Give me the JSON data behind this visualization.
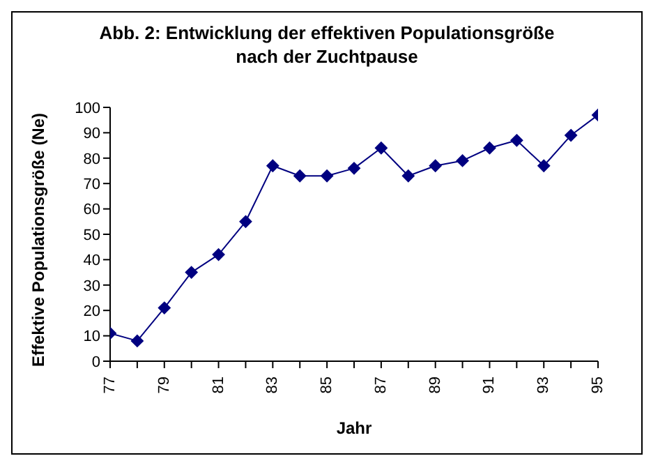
{
  "chart_data": {
    "type": "line",
    "title": "Abb. 2: Entwicklung der effektiven Populationsgröße nach der Zuchtpause",
    "xlabel": "Jahr",
    "ylabel": "Effektive Populationsgröße (Ne)",
    "categories": [
      "77",
      null,
      "79",
      null,
      "81",
      null,
      "83",
      null,
      "85",
      null,
      "87",
      null,
      "89",
      null,
      "91",
      null,
      "93",
      null,
      "95"
    ],
    "series": [
      {
        "color": "#000080",
        "values": [
          11,
          8,
          21,
          35,
          42,
          55,
          77,
          73,
          73,
          76,
          84,
          73,
          77,
          79,
          84,
          87,
          77,
          89,
          97
        ]
      }
    ],
    "ylim": [
      0,
      100
    ],
    "yticks": [
      0,
      10,
      20,
      30,
      40,
      50,
      60,
      70,
      80,
      90,
      100
    ],
    "grid": false,
    "legend": false,
    "marker": "diamond",
    "line_style": "solid"
  }
}
